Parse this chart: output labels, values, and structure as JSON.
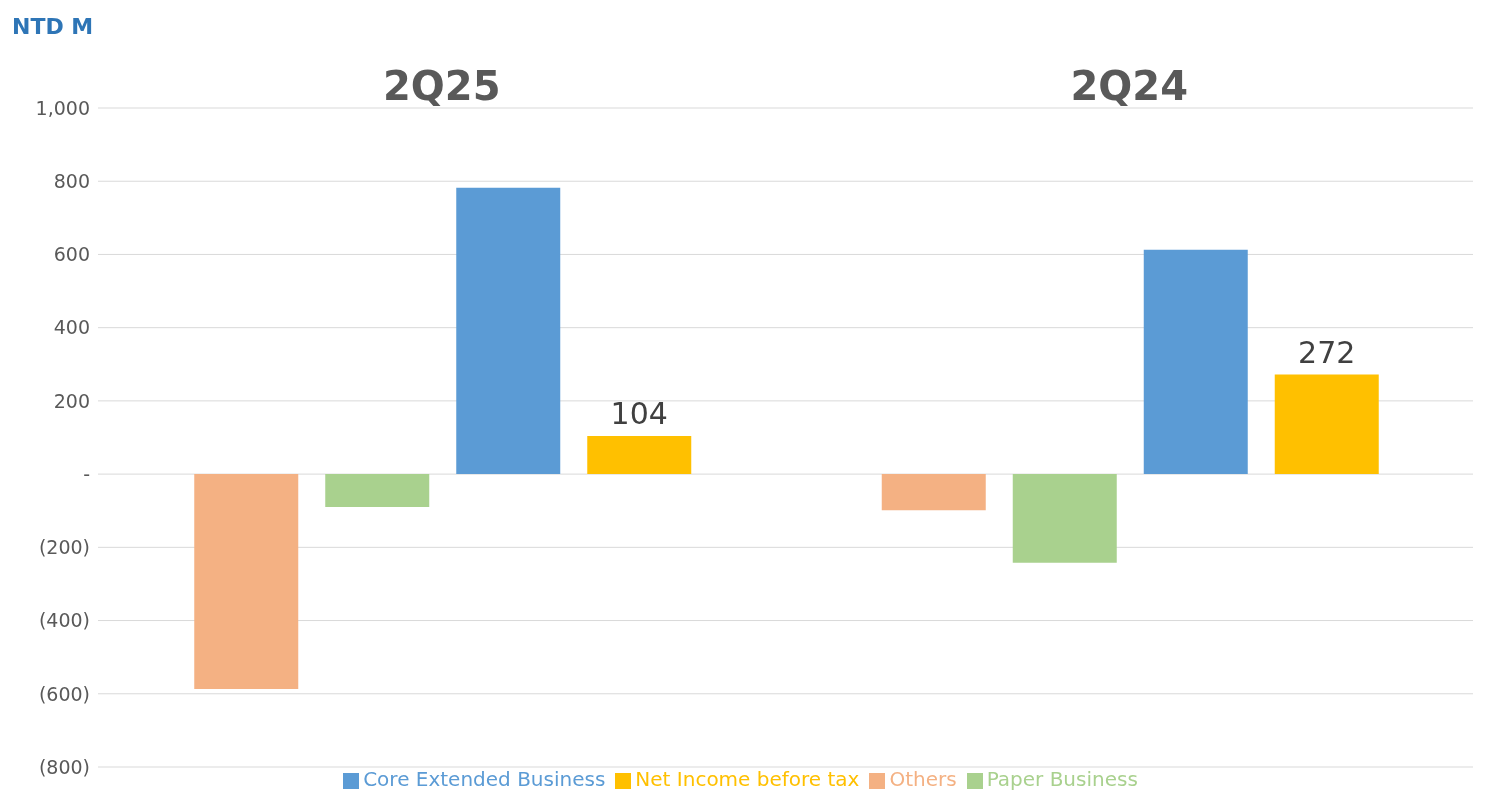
{
  "chart_data": {
    "type": "bar",
    "ylabel": "NTD M",
    "categories": [
      "2Q25",
      "2Q24"
    ],
    "series": [
      {
        "name": "Others",
        "color": "#f4b183",
        "values": [
          -587,
          -99
        ]
      },
      {
        "name": "Paper Business",
        "color": "#a9d18e",
        "values": [
          -90,
          -242
        ]
      },
      {
        "name": "Core Extended Business",
        "color": "#5b9bd5",
        "values": [
          782,
          613
        ]
      },
      {
        "name": "Net Income before tax",
        "color": "#ffc000",
        "values": [
          104,
          272
        ],
        "value_labels": [
          "104",
          "272"
        ]
      }
    ],
    "ylim": [
      -800,
      1000
    ],
    "yticks": [
      {
        "value": -800,
        "label": "(800)"
      },
      {
        "value": -600,
        "label": "(600)"
      },
      {
        "value": -400,
        "label": "(400)"
      },
      {
        "value": -200,
        "label": "(200)"
      },
      {
        "value": 0,
        "label": "-"
      },
      {
        "value": 200,
        "label": "200"
      },
      {
        "value": 400,
        "label": "400"
      },
      {
        "value": 600,
        "label": "600"
      },
      {
        "value": 800,
        "label": "800"
      },
      {
        "value": 1000,
        "label": "1,000"
      }
    ],
    "grid": "y",
    "legend": "bottom"
  }
}
